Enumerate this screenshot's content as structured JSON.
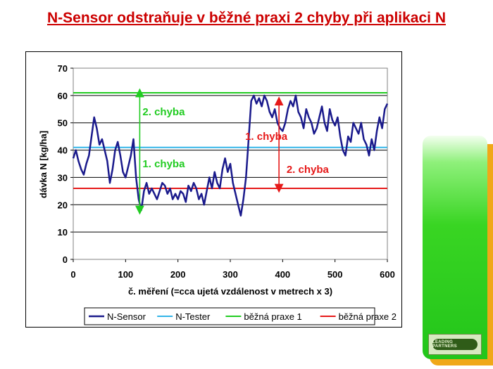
{
  "slide": {
    "title": "N-Sensor odstraňuje v běžné praxi 2 chyby při aplikaci N",
    "title_color": "#cc0000",
    "logo_text": "LEADING PARTNERS"
  },
  "colors": {
    "n_sensor": "#1a1a8c",
    "n_tester": "#33b5e8",
    "praxe1": "#22cc22",
    "praxe2": "#e61919",
    "grid": "#000000"
  },
  "chart_data": {
    "type": "line",
    "title": "",
    "xlabel": "č. měření (=cca ujetá vzdálenost v metrech x 3)",
    "ylabel": "dávka N [kg/ha]",
    "xlim": [
      0,
      600
    ],
    "ylim": [
      0,
      70
    ],
    "x_ticks": [
      0,
      100,
      200,
      300,
      400,
      500,
      600
    ],
    "y_ticks": [
      0,
      10,
      20,
      30,
      40,
      50,
      60,
      70
    ],
    "grid": "horizontal",
    "legend_position": "bottom",
    "series": [
      {
        "name": "N-Sensor",
        "x": [
          0,
          5,
          10,
          15,
          20,
          25,
          30,
          35,
          40,
          45,
          50,
          55,
          60,
          65,
          70,
          75,
          80,
          85,
          90,
          95,
          100,
          105,
          110,
          115,
          120,
          125,
          130,
          135,
          140,
          145,
          150,
          155,
          160,
          165,
          170,
          175,
          180,
          185,
          190,
          195,
          200,
          205,
          210,
          215,
          220,
          225,
          230,
          235,
          240,
          245,
          250,
          255,
          260,
          265,
          270,
          275,
          280,
          285,
          290,
          295,
          300,
          305,
          310,
          315,
          320,
          325,
          330,
          335,
          340,
          345,
          350,
          355,
          360,
          365,
          370,
          375,
          380,
          385,
          390,
          395,
          400,
          405,
          410,
          415,
          420,
          425,
          430,
          435,
          440,
          445,
          450,
          455,
          460,
          465,
          470,
          475,
          480,
          485,
          490,
          495,
          500,
          505,
          510,
          515,
          520,
          525,
          530,
          535,
          540,
          545,
          550,
          555,
          560,
          565,
          570,
          575,
          580,
          585,
          590,
          595,
          600
        ],
        "values": [
          37,
          40,
          36,
          33,
          31,
          35,
          38,
          45,
          52,
          48,
          42,
          44,
          40,
          36,
          28,
          33,
          40,
          43,
          38,
          32,
          30,
          34,
          38,
          44,
          30,
          22,
          18,
          25,
          28,
          24,
          26,
          24,
          22,
          25,
          28,
          27,
          24,
          26,
          22,
          24,
          22,
          25,
          24,
          21,
          27,
          25,
          28,
          26,
          22,
          24,
          20,
          25,
          30,
          26,
          32,
          28,
          26,
          33,
          37,
          32,
          35,
          28,
          24,
          20,
          16,
          22,
          30,
          44,
          58,
          60,
          57,
          59,
          56,
          60,
          58,
          54,
          52,
          55,
          50,
          48,
          47,
          50,
          55,
          58,
          56,
          60,
          54,
          52,
          48,
          55,
          52,
          50,
          46,
          48,
          52,
          56,
          50,
          47,
          55,
          51,
          49,
          52,
          45,
          40,
          38,
          45,
          43,
          50,
          48,
          46,
          50,
          44,
          42,
          38,
          44,
          40,
          47,
          52,
          48,
          55,
          57
        ]
      },
      {
        "name": "N-Tester",
        "x": [
          0,
          600
        ],
        "values": [
          41,
          41
        ]
      },
      {
        "name": "běžná praxe 1",
        "x": [
          0,
          600
        ],
        "values": [
          61,
          61
        ]
      },
      {
        "name": "běžná praxe 2",
        "x": [
          0,
          600
        ],
        "values": [
          26,
          26
        ]
      }
    ],
    "annotations": [
      {
        "text": "2. chyba",
        "color": "green",
        "x": 127,
        "y": 54
      },
      {
        "text": "1. chyba",
        "color": "green",
        "x": 127,
        "y": 35
      },
      {
        "text": "1. chyba",
        "color": "red",
        "x": 323,
        "y": 45
      },
      {
        "text": "2. chyba",
        "color": "red",
        "x": 402,
        "y": 33
      }
    ],
    "arrows": [
      {
        "color": "green",
        "x": 127,
        "from": 41,
        "to": 61
      },
      {
        "color": "green",
        "x": 127,
        "from": 41,
        "to": 18
      },
      {
        "color": "red",
        "x": 393,
        "from": 41,
        "to": 58
      },
      {
        "color": "red",
        "x": 393,
        "from": 41,
        "to": 26
      }
    ]
  }
}
